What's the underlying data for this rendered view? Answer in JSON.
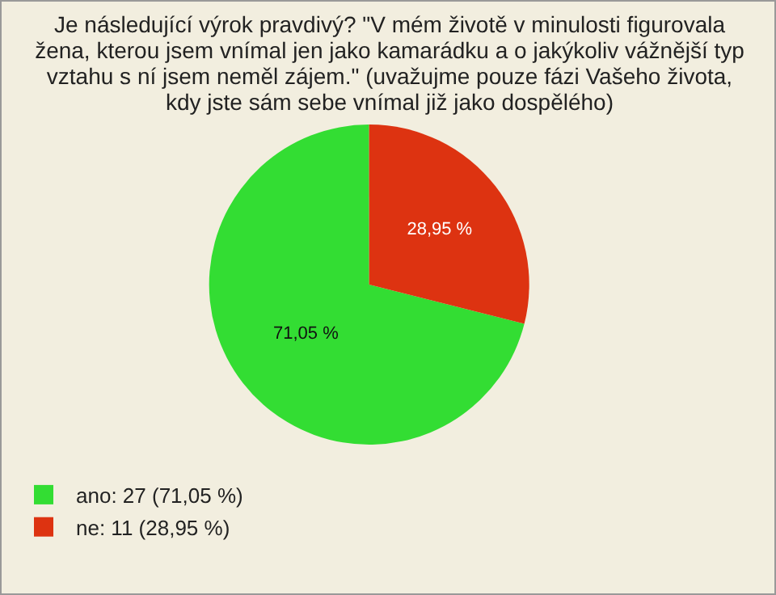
{
  "chart_data": {
    "type": "pie",
    "title": "Je následující výrok pravdivý? \"V mém životě v minulosti figurovala žena, kterou jsem vnímal jen jako kamarádku a o jakýkoliv vážnější typ vztahu s ní jsem neměl zájem.\" (uvažujme pouze fázi Vašeho života, kdy jste sám sebe vnímal již jako dospělého)",
    "categories": [
      "ano: 27 (71,05 %)",
      "ne: 11 (28,95 %)"
    ],
    "values": [
      71.05,
      28.95
    ],
    "colors": [
      "#33dd33",
      "#dd3311"
    ],
    "value_labels": [
      "71,05 %",
      "28,95 %"
    ],
    "legend": "bottom left"
  }
}
